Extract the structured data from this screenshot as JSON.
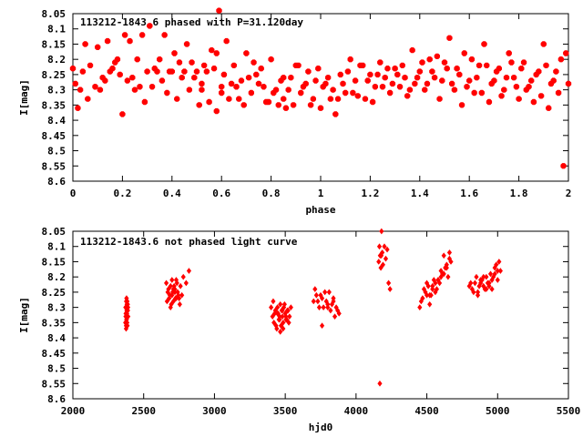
{
  "colors": {
    "points": "#ff0000",
    "axis": "#000000",
    "background": "#ffffff"
  },
  "chart_data": [
    {
      "type": "scatter",
      "title": "113212-1843.6 phased with P=31.120day",
      "xlabel": "phase",
      "ylabel": "I[mag]",
      "xlim": [
        0,
        2
      ],
      "ylim": [
        8.05,
        8.6
      ],
      "y_inverted": true,
      "grid": false,
      "xticks": [
        "0",
        "0.2",
        "0.4",
        "0.6",
        "0.8",
        "1",
        "1.2",
        "1.4",
        "1.6",
        "1.8",
        "2"
      ],
      "yticks": [
        "8.05",
        "8.1",
        "8.15",
        "8.2",
        "8.25",
        "8.3",
        "8.35",
        "8.4",
        "8.45",
        "8.5",
        "8.55",
        "8.6"
      ],
      "series": [
        {
          "marker": "star",
          "x": [
            0.0,
            0.01,
            0.03,
            0.04,
            0.05,
            0.06,
            0.09,
            0.1,
            0.12,
            0.14,
            0.15,
            0.16,
            0.17,
            0.19,
            0.2,
            0.21,
            0.22,
            0.23,
            0.25,
            0.26,
            0.28,
            0.29,
            0.3,
            0.31,
            0.32,
            0.33,
            0.34,
            0.35,
            0.36,
            0.37,
            0.38,
            0.4,
            0.41,
            0.42,
            0.43,
            0.44,
            0.45,
            0.46,
            0.47,
            0.48,
            0.5,
            0.51,
            0.52,
            0.53,
            0.54,
            0.55,
            0.56,
            0.57,
            0.58,
            0.59,
            0.6,
            0.61,
            0.62,
            0.63,
            0.64,
            0.65,
            0.66,
            0.67,
            0.68,
            0.69,
            0.7,
            0.71,
            0.72,
            0.73,
            0.75,
            0.76,
            0.78,
            0.8,
            0.82,
            0.83,
            0.84,
            0.85,
            0.86,
            0.87,
            0.88,
            0.89,
            0.9,
            0.92,
            0.93,
            0.95,
            0.97,
            0.98,
            1.0,
            1.02,
            1.04,
            1.05,
            1.06,
            1.08,
            1.1,
            1.12,
            1.14,
            1.15,
            1.17,
            1.18,
            1.2,
            1.22,
            1.24,
            1.26,
            1.28,
            1.3,
            1.32,
            1.34,
            1.35,
            1.37,
            1.38,
            1.4,
            1.42,
            1.44,
            1.46,
            1.48,
            1.5,
            1.52,
            1.53,
            1.55,
            1.57,
            1.58,
            1.6,
            1.62,
            1.64,
            1.66,
            1.68,
            1.7,
            1.72,
            1.74,
            1.76,
            1.78,
            1.8,
            1.82,
            1.84,
            1.86,
            1.88,
            1.9,
            1.92,
            1.94,
            1.96,
            1.97,
            1.98,
            1.99,
            2.0,
            0.02,
            0.07,
            0.11,
            0.13,
            0.18,
            0.24,
            0.27,
            0.39,
            0.49,
            0.52,
            0.58,
            0.6,
            0.74,
            0.77,
            0.79,
            0.81,
            0.85,
            0.91,
            0.94,
            0.96,
            0.99,
            1.01,
            1.03,
            1.07,
            1.09,
            1.11,
            1.13,
            1.16,
            1.19,
            1.21,
            1.23,
            1.25,
            1.27,
            1.29,
            1.31,
            1.33,
            1.36,
            1.39,
            1.41,
            1.43,
            1.45,
            1.47,
            1.49,
            1.51,
            1.54,
            1.56,
            1.59,
            1.61,
            1.63,
            1.65,
            1.67,
            1.69,
            1.71,
            1.73,
            1.75,
            1.77,
            1.79,
            1.81,
            1.83,
            1.85,
            1.87,
            1.89,
            1.91,
            1.93,
            1.95
          ],
          "y": [
            8.23,
            8.28,
            8.3,
            8.24,
            8.15,
            8.33,
            8.29,
            8.16,
            8.26,
            8.14,
            8.24,
            8.23,
            8.21,
            8.25,
            8.38,
            8.12,
            8.27,
            8.14,
            8.3,
            8.2,
            8.12,
            8.34,
            8.24,
            8.09,
            8.29,
            8.23,
            8.24,
            8.2,
            8.27,
            8.12,
            8.31,
            8.24,
            8.18,
            8.33,
            8.21,
            8.26,
            8.24,
            8.15,
            8.3,
            8.21,
            8.24,
            8.35,
            8.28,
            8.22,
            8.24,
            8.34,
            8.17,
            8.23,
            8.37,
            8.04,
            8.29,
            8.25,
            8.14,
            8.33,
            8.28,
            8.22,
            8.29,
            8.33,
            8.27,
            8.35,
            8.18,
            8.26,
            8.31,
            8.21,
            8.28,
            8.23,
            8.34,
            8.2,
            8.3,
            8.35,
            8.27,
            8.33,
            8.36,
            8.3,
            8.26,
            8.35,
            8.22,
            8.31,
            8.29,
            8.24,
            8.33,
            8.27,
            8.36,
            8.28,
            8.33,
            8.3,
            8.38,
            8.25,
            8.31,
            8.2,
            8.27,
            8.32,
            8.22,
            8.33,
            8.25,
            8.29,
            8.21,
            8.26,
            8.31,
            8.23,
            8.29,
            8.26,
            8.32,
            8.17,
            8.28,
            8.24,
            8.3,
            8.2,
            8.26,
            8.33,
            8.21,
            8.13,
            8.28,
            8.23,
            8.35,
            8.18,
            8.27,
            8.31,
            8.22,
            8.15,
            8.34,
            8.27,
            8.23,
            8.3,
            8.18,
            8.26,
            8.33,
            8.21,
            8.29,
            8.34,
            8.24,
            8.15,
            8.36,
            8.27,
            8.31,
            8.2,
            8.55,
            8.18,
            8.28,
            8.36,
            8.22,
            8.3,
            8.27,
            8.2,
            8.26,
            8.29,
            8.24,
            8.26,
            8.3,
            8.18,
            8.31,
            8.25,
            8.29,
            8.34,
            8.31,
            8.26,
            8.22,
            8.28,
            8.35,
            8.23,
            8.29,
            8.26,
            8.33,
            8.28,
            8.24,
            8.31,
            8.22,
            8.27,
            8.34,
            8.25,
            8.29,
            8.23,
            8.28,
            8.25,
            8.22,
            8.3,
            8.26,
            8.21,
            8.28,
            8.24,
            8.19,
            8.27,
            8.23,
            8.3,
            8.25,
            8.29,
            8.2,
            8.26,
            8.31,
            8.22,
            8.28,
            8.24,
            8.32,
            8.26,
            8.21,
            8.29,
            8.23,
            8.3,
            8.27,
            8.25,
            8.32,
            8.22,
            8.28,
            8.24
          ]
        }
      ]
    },
    {
      "type": "scatter",
      "title": "113212-1843.6 not phased light curve",
      "xlabel": "hjd0",
      "ylabel": "I[mag]",
      "xlim": [
        2000,
        5500
      ],
      "ylim": [
        8.05,
        8.6
      ],
      "y_inverted": true,
      "grid": false,
      "xticks": [
        "2000",
        "2500",
        "3000",
        "3500",
        "4000",
        "4500",
        "5000",
        "5500"
      ],
      "yticks": [
        "8.05",
        "8.1",
        "8.15",
        "8.2",
        "8.25",
        "8.3",
        "8.35",
        "8.4",
        "8.45",
        "8.5",
        "8.55",
        "8.6"
      ],
      "series": [
        {
          "marker": "diamond",
          "x": [
            2372,
            2375,
            2377,
            2380,
            2382,
            2385,
            2387,
            2390,
            2376,
            2379,
            2383,
            2386,
            2374,
            2381,
            2378,
            2384,
            2388,
            2373,
            2389,
            2371,
            2376,
            2382,
            2385,
            2380,
            2660,
            2670,
            2680,
            2690,
            2700,
            2710,
            2720,
            2730,
            2740,
            2750,
            2760,
            2770,
            2780,
            2800,
            2820,
            2665,
            2675,
            2685,
            2695,
            2705,
            2715,
            2725,
            2735,
            2745,
            2755,
            2690,
            2710,
            2730,
            2700,
            2720,
            3400,
            3410,
            3420,
            3430,
            3440,
            3450,
            3460,
            3470,
            3480,
            3490,
            3500,
            3510,
            3520,
            3530,
            3540,
            3415,
            3425,
            3435,
            3445,
            3455,
            3465,
            3475,
            3485,
            3495,
            3505,
            3515,
            3525,
            3445,
            3465,
            3485,
            3505,
            3460,
            3480,
            3700,
            3720,
            3740,
            3760,
            3780,
            3800,
            3820,
            3840,
            3860,
            3880,
            3710,
            3730,
            3750,
            3770,
            3790,
            3810,
            3830,
            3850,
            3870,
            3760,
            3800,
            3840,
            4160,
            4165,
            4170,
            4175,
            4180,
            4185,
            4190,
            4200,
            4210,
            4220,
            4230,
            4240,
            4168,
            4178,
            4450,
            4470,
            4490,
            4510,
            4530,
            4550,
            4570,
            4590,
            4610,
            4630,
            4650,
            4670,
            4460,
            4480,
            4500,
            4520,
            4540,
            4560,
            4580,
            4600,
            4620,
            4640,
            4660,
            4520,
            4560,
            4600,
            4640,
            4500,
            4540,
            4580,
            4620,
            4660,
            4800,
            4820,
            4840,
            4860,
            4880,
            4900,
            4920,
            4940,
            4960,
            4980,
            5000,
            5020,
            4810,
            4830,
            4850,
            4870,
            4890,
            4910,
            4930,
            4950,
            4970,
            4990,
            5010,
            4860,
            4900,
            4940,
            4980,
            4880,
            4920,
            4960,
            5000
          ],
          "y": [
            8.3,
            8.32,
            8.28,
            8.34,
            8.31,
            8.36,
            8.29,
            8.33,
            8.37,
            8.27,
            8.35,
            8.3,
            8.32,
            8.29,
            8.34,
            8.28,
            8.31,
            8.33,
            8.3,
            8.35,
            8.36,
            8.32,
            8.29,
            8.31,
            8.22,
            8.25,
            8.27,
            8.23,
            8.26,
            8.28,
            8.24,
            8.21,
            8.25,
            8.27,
            8.23,
            8.26,
            8.2,
            8.22,
            8.18,
            8.28,
            8.24,
            8.26,
            8.29,
            8.25,
            8.23,
            8.27,
            8.22,
            8.26,
            8.29,
            8.3,
            8.24,
            8.27,
            8.21,
            8.25,
            8.3,
            8.33,
            8.35,
            8.31,
            8.37,
            8.32,
            8.34,
            8.36,
            8.33,
            8.3,
            8.32,
            8.34,
            8.31,
            8.33,
            8.3,
            8.28,
            8.32,
            8.36,
            8.3,
            8.34,
            8.38,
            8.31,
            8.35,
            8.29,
            8.33,
            8.31,
            8.35,
            8.32,
            8.29,
            8.37,
            8.34,
            8.33,
            8.31,
            8.28,
            8.26,
            8.3,
            8.27,
            8.25,
            8.29,
            8.31,
            8.27,
            8.3,
            8.32,
            8.24,
            8.28,
            8.26,
            8.3,
            8.28,
            8.25,
            8.29,
            8.33,
            8.31,
            8.36,
            8.3,
            8.28,
            8.15,
            8.1,
            8.13,
            8.17,
            8.05,
            8.12,
            8.16,
            8.1,
            8.14,
            8.11,
            8.22,
            8.24,
            8.55,
            8.13,
            8.3,
            8.27,
            8.25,
            8.23,
            8.26,
            8.21,
            8.24,
            8.22,
            8.19,
            8.17,
            8.2,
            8.15,
            8.28,
            8.24,
            8.22,
            8.26,
            8.23,
            8.25,
            8.21,
            8.18,
            8.19,
            8.16,
            8.14,
            8.29,
            8.22,
            8.2,
            8.17,
            8.26,
            8.24,
            8.21,
            8.13,
            8.12,
            8.23,
            8.24,
            8.22,
            8.25,
            8.21,
            8.23,
            8.2,
            8.22,
            8.24,
            8.19,
            8.21,
            8.18,
            8.22,
            8.25,
            8.2,
            8.23,
            8.21,
            8.24,
            8.22,
            8.19,
            8.2,
            8.16,
            8.15,
            8.26,
            8.2,
            8.23,
            8.17,
            8.22,
            8.24,
            8.21,
            8.18
          ]
        }
      ]
    }
  ]
}
